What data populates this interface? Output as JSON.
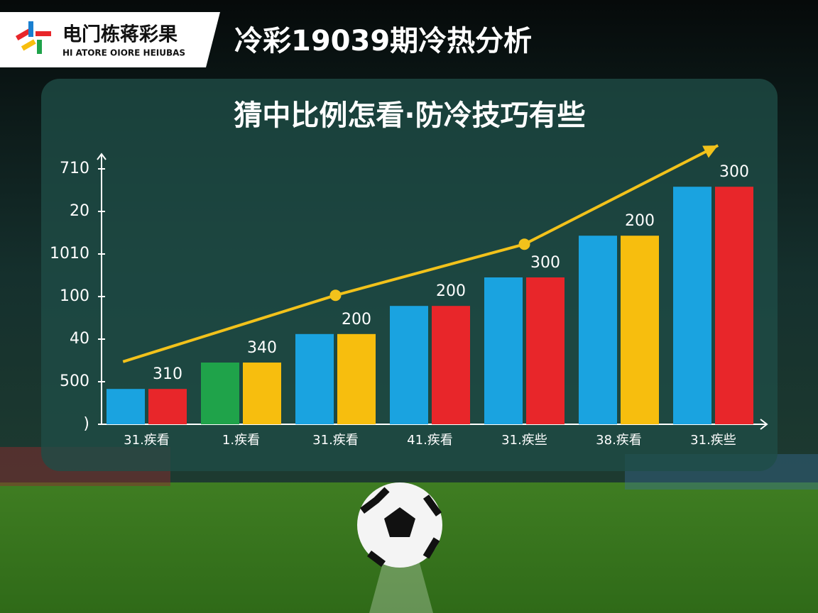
{
  "header": {
    "brand": "电门栋蒋彩果",
    "brand_sub": "HI ATORE OIORE HEIUBAS",
    "title": "冷彩19039期冷热分析"
  },
  "chart_data": {
    "type": "bar",
    "title": "猜中比例怎看·防冷技巧有些",
    "categories": [
      "31.疾看",
      "1.疾看",
      "31.疾看",
      "41.疾看",
      "31.疾些",
      "38.疾看",
      "31.疾些"
    ],
    "series": [
      {
        "colors": [
          "#1aa3e0",
          "#1fa34a",
          "#1aa3e0",
          "#1aa3e0",
          "#1aa3e0",
          "#1aa3e0",
          "#1aa3e0"
        ],
        "values": [
          0.83,
          1.45,
          2.12,
          2.78,
          3.45,
          4.43,
          5.58
        ]
      },
      {
        "colors": [
          "#e8262a",
          "#f7be0e",
          "#f7be0e",
          "#e8262a",
          "#e8262a",
          "#f7be0e",
          "#e8262a"
        ],
        "values": [
          0.83,
          1.45,
          2.12,
          2.78,
          3.45,
          4.43,
          5.58
        ]
      }
    ],
    "bar_labels": [
      "310",
      "340",
      "200",
      "200",
      "300",
      "200",
      "300"
    ],
    "trend": {
      "color": "#f2c21b",
      "x": [
        -0.25,
        2,
        4,
        6.05
      ],
      "values": [
        1.47,
        3.03,
        4.23,
        6.55
      ]
    },
    "ylim": [
      0,
      6.35
    ],
    "yticks": [
      {
        "value": 0,
        "label": ")"
      },
      {
        "value": 1,
        "label": "500"
      },
      {
        "value": 2,
        "label": "40"
      },
      {
        "value": 3,
        "label": "100"
      },
      {
        "value": 4,
        "label": "1010"
      },
      {
        "value": 5,
        "label": "20"
      },
      {
        "value": 6,
        "label": "710"
      }
    ]
  }
}
